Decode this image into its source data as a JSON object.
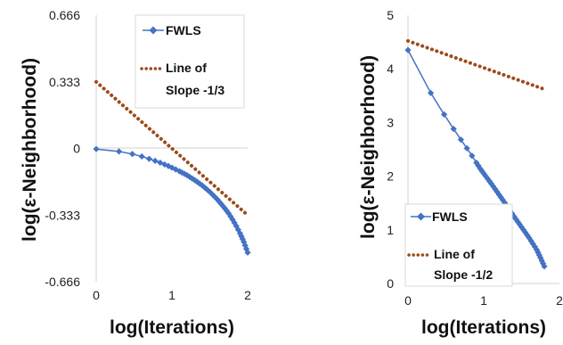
{
  "chart_data": [
    {
      "type": "line",
      "xlabel": "log(Iterations)",
      "ylabel": "log(ε-Neighborhood)",
      "xlim": [
        0,
        2
      ],
      "ylim": [
        -0.666,
        0.666
      ],
      "x_ticks": [
        "0",
        "1",
        "2"
      ],
      "y_ticks": [
        "0.666",
        "0.333",
        "0",
        "-0.333",
        "-0.666"
      ],
      "legend_position": "top-right",
      "series": [
        {
          "name": "FWLS",
          "style": "line-diamond",
          "color": "#4472c4",
          "x": [
            0,
            0.301,
            0.477,
            0.602,
            0.699,
            0.778,
            0.845,
            0.903,
            0.954,
            1.0,
            1.1,
            1.2,
            1.3,
            1.4,
            1.5,
            1.6,
            1.7,
            1.75,
            1.8,
            1.85,
            1.9,
            1.95,
            2.0
          ],
          "y": [
            -0.003,
            -0.015,
            -0.028,
            -0.04,
            -0.052,
            -0.062,
            -0.071,
            -0.08,
            -0.088,
            -0.096,
            -0.114,
            -0.134,
            -0.158,
            -0.185,
            -0.217,
            -0.255,
            -0.3,
            -0.325,
            -0.355,
            -0.388,
            -0.425,
            -0.467,
            -0.52
          ]
        },
        {
          "name": "Line of Slope -1/3",
          "style": "dotted",
          "color": "#9c4a1a",
          "x": [
            0,
            2
          ],
          "y": [
            0.333,
            -0.333
          ]
        }
      ]
    },
    {
      "type": "line",
      "xlabel": "log(Iterations)",
      "ylabel": "log(ε-Neighborhood)",
      "xlim": [
        0,
        2
      ],
      "ylim": [
        0,
        5
      ],
      "x_ticks": [
        "0",
        "1",
        "2"
      ],
      "y_ticks": [
        "5",
        "4",
        "3",
        "2",
        "1",
        "0"
      ],
      "legend_position": "bottom-right",
      "series": [
        {
          "name": "FWLS",
          "style": "line-diamond",
          "color": "#4472c4",
          "x": [
            0,
            0.301,
            0.477,
            0.602,
            0.699,
            0.778,
            0.845,
            0.903,
            0.954,
            1.0,
            1.1,
            1.2,
            1.3,
            1.4,
            1.5,
            1.6,
            1.7,
            1.75,
            1.8
          ],
          "y": [
            4.35,
            3.55,
            3.15,
            2.88,
            2.68,
            2.52,
            2.38,
            2.25,
            2.14,
            2.05,
            1.86,
            1.66,
            1.46,
            1.25,
            1.05,
            0.85,
            0.63,
            0.48,
            0.32
          ]
        },
        {
          "name": "Line of Slope -1/2",
          "style": "dotted",
          "color": "#9c4a1a",
          "x": [
            0,
            1.8
          ],
          "y": [
            4.52,
            3.62
          ]
        }
      ]
    }
  ],
  "legend_labels": [
    {
      "line1": "FWLS"
    },
    {
      "line1": "Line of",
      "line2": "Slope -1/3"
    },
    {
      "line1": "FWLS"
    },
    {
      "line1": "Line of",
      "line2": "Slope -1/2"
    }
  ]
}
